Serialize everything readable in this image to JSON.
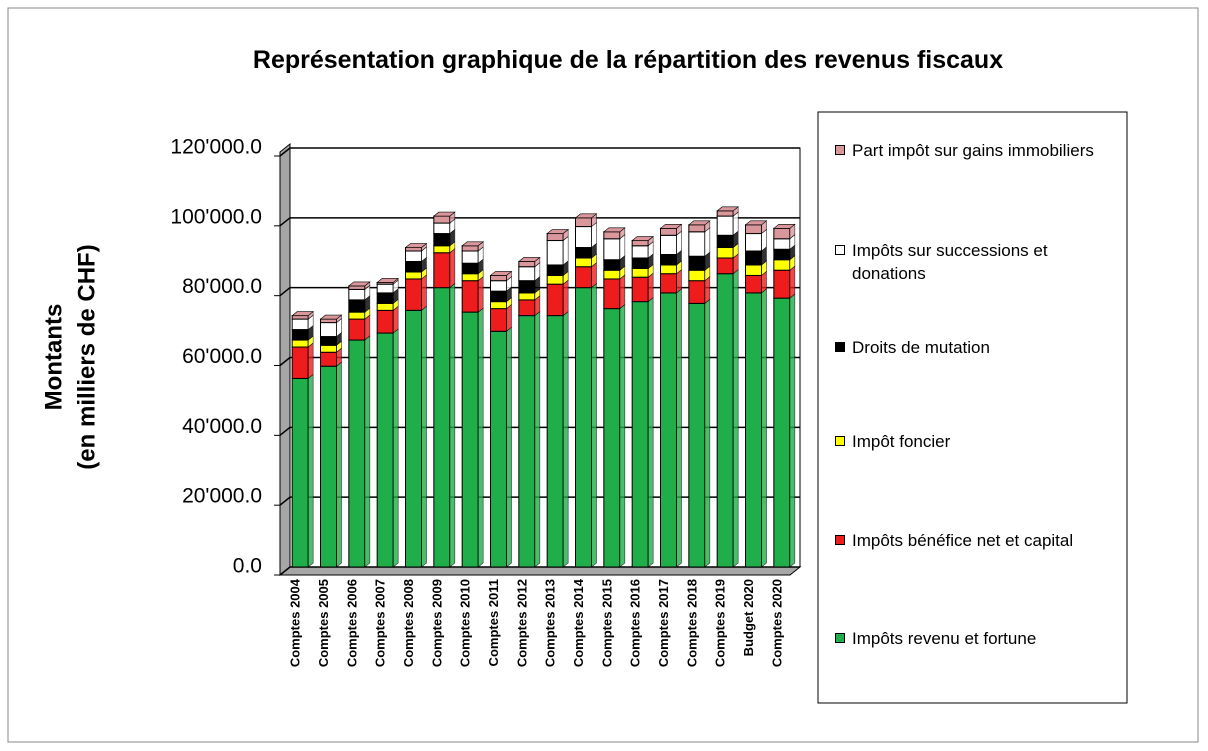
{
  "chart_data": {
    "type": "stacked_bar",
    "title": "Représentation graphique de la répartition des revenus fiscaux",
    "ylabel": [
      "Montants",
      "(en milliers de CHF)"
    ],
    "categories": [
      "Comptes 2004",
      "Comptes 2005",
      "Comptes 2006",
      "Comptes 2007",
      "Comptes 2008",
      "Comptes 2009",
      "Comptes 2010",
      "Comptes 2011",
      "Comptes 2012",
      "Comptes 2013",
      "Comptes 2014",
      "Comptes 2015",
      "Comptes 2016",
      "Comptes 2017",
      "Comptes 2018",
      "Comptes 2019",
      "Budget 2020",
      "Comptes 2020"
    ],
    "series": [
      {
        "name": "Impôts revenu et fortune",
        "color": "#1fae4a",
        "values": [
          54000,
          57500,
          65000,
          67000,
          73500,
          80000,
          73000,
          67500,
          72000,
          72000,
          80000,
          74000,
          76000,
          78500,
          75500,
          84000,
          78500,
          77000
        ]
      },
      {
        "name": "Impôts bénéfice net et capital",
        "color": "#ee1c1c",
        "values": [
          9000,
          4000,
          6000,
          6500,
          9000,
          10000,
          9000,
          6500,
          4500,
          9000,
          6000,
          8500,
          7000,
          5500,
          6500,
          4500,
          5000,
          8000
        ]
      },
      {
        "name": "Impôt foncier",
        "color": "#ffff00",
        "values": [
          2000,
          2000,
          2000,
          2000,
          2000,
          2000,
          2000,
          2000,
          2000,
          2500,
          2500,
          2500,
          2500,
          2500,
          3000,
          3000,
          3000,
          3000
        ]
      },
      {
        "name": "Droits de mutation",
        "color": "#000000",
        "values": [
          3000,
          2500,
          3500,
          3000,
          3000,
          3500,
          3000,
          3000,
          3500,
          3000,
          3000,
          3000,
          3000,
          3000,
          4000,
          3500,
          4000,
          3000
        ]
      },
      {
        "name": "Impôts sur successions et donations",
        "color": "#ffffff",
        "values": [
          3000,
          4000,
          3000,
          2500,
          3000,
          3000,
          3500,
          3000,
          4000,
          7000,
          6000,
          6000,
          3500,
          5500,
          7000,
          5500,
          5000,
          3000
        ]
      },
      {
        "name": "Part impôt sur gains immobiliers",
        "color": "#d9969b",
        "values": [
          1000,
          1000,
          1000,
          500,
          1000,
          2000,
          1500,
          1500,
          1500,
          2000,
          2500,
          2000,
          1500,
          2000,
          2000,
          1500,
          2500,
          3000
        ]
      }
    ],
    "ylim": [
      0,
      120000
    ],
    "yticks": [
      {
        "value": 0,
        "label": "0.0"
      },
      {
        "value": 20000,
        "label": "20'000.0"
      },
      {
        "value": 40000,
        "label": "40'000.0"
      },
      {
        "value": 60000,
        "label": "60'000.0"
      },
      {
        "value": 80000,
        "label": "80'000.0"
      },
      {
        "value": 100000,
        "label": "100'000.0"
      },
      {
        "value": 120000,
        "label": "120'000.0"
      }
    ],
    "grid": true
  }
}
